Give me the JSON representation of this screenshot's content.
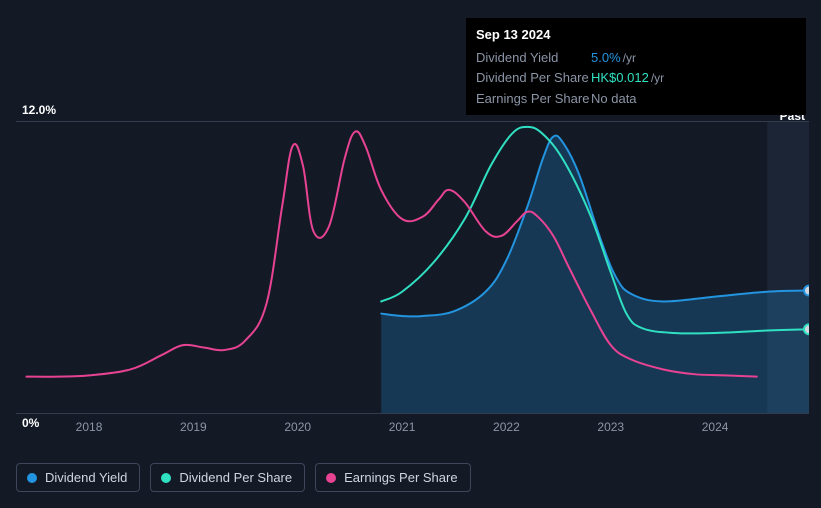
{
  "tooltip": {
    "date": "Sep 13 2024",
    "rows": [
      {
        "label": "Dividend Yield",
        "value": "5.0%",
        "unit": "/yr",
        "color": "#2394df"
      },
      {
        "label": "Dividend Per Share",
        "value": "HK$0.012",
        "unit": "/yr",
        "color": "#30e0c2"
      },
      {
        "label": "Earnings Per Share",
        "value": "No data",
        "unit": "",
        "color": "#8b95a6"
      }
    ]
  },
  "axes": {
    "y_top": "12.0%",
    "y_bottom": "0%",
    "past_label": "Past",
    "x_ticks": [
      "2018",
      "2019",
      "2020",
      "2021",
      "2022",
      "2023",
      "2024"
    ],
    "ylim": [
      0,
      12
    ],
    "grid_color": "#333c4d",
    "background_color": "#131a26"
  },
  "chart": {
    "x_year_range": [
      2017.3,
      2024.9
    ],
    "future_start_x": 2024.5,
    "series": [
      {
        "name": "Dividend Yield",
        "color": "#2394df",
        "fill": true,
        "fill_opacity": 0.25,
        "line_width": 2,
        "end_marker": true,
        "end_marker_fill": "#d0d6e0",
        "points": [
          [
            2020.8,
            4.1
          ],
          [
            2021.0,
            4.0
          ],
          [
            2021.2,
            4.0
          ],
          [
            2021.5,
            4.2
          ],
          [
            2021.8,
            5.0
          ],
          [
            2022.0,
            6.3
          ],
          [
            2022.2,
            8.5
          ],
          [
            2022.35,
            10.5
          ],
          [
            2022.45,
            11.4
          ],
          [
            2022.55,
            11.1
          ],
          [
            2022.7,
            9.8
          ],
          [
            2022.9,
            7.2
          ],
          [
            2023.05,
            5.6
          ],
          [
            2023.2,
            4.9
          ],
          [
            2023.5,
            4.6
          ],
          [
            2024.0,
            4.8
          ],
          [
            2024.5,
            5.0
          ],
          [
            2024.9,
            5.05
          ]
        ]
      },
      {
        "name": "Dividend Per Share",
        "color": "#30e0c2",
        "fill": false,
        "line_width": 2,
        "end_marker": true,
        "end_marker_fill": "#d0d6e0",
        "points": [
          [
            2020.8,
            4.6
          ],
          [
            2021.0,
            5.0
          ],
          [
            2021.3,
            6.2
          ],
          [
            2021.6,
            8.0
          ],
          [
            2021.85,
            10.2
          ],
          [
            2022.05,
            11.5
          ],
          [
            2022.2,
            11.8
          ],
          [
            2022.35,
            11.5
          ],
          [
            2022.55,
            10.4
          ],
          [
            2022.8,
            8.2
          ],
          [
            2023.0,
            5.8
          ],
          [
            2023.15,
            4.1
          ],
          [
            2023.3,
            3.5
          ],
          [
            2023.6,
            3.3
          ],
          [
            2024.0,
            3.3
          ],
          [
            2024.5,
            3.4
          ],
          [
            2024.9,
            3.45
          ]
        ]
      },
      {
        "name": "Earnings Per Share",
        "color": "#e84393",
        "fill": false,
        "line_width": 2,
        "end_marker": false,
        "points": [
          [
            2017.4,
            1.5
          ],
          [
            2017.7,
            1.5
          ],
          [
            2018.0,
            1.55
          ],
          [
            2018.4,
            1.8
          ],
          [
            2018.7,
            2.4
          ],
          [
            2018.9,
            2.8
          ],
          [
            2019.1,
            2.7
          ],
          [
            2019.3,
            2.6
          ],
          [
            2019.5,
            3.0
          ],
          [
            2019.7,
            4.5
          ],
          [
            2019.85,
            8.5
          ],
          [
            2019.95,
            11.0
          ],
          [
            2020.05,
            10.2
          ],
          [
            2020.15,
            7.5
          ],
          [
            2020.3,
            7.7
          ],
          [
            2020.45,
            10.5
          ],
          [
            2020.55,
            11.6
          ],
          [
            2020.65,
            11.0
          ],
          [
            2020.8,
            9.2
          ],
          [
            2021.0,
            8.0
          ],
          [
            2021.2,
            8.1
          ],
          [
            2021.35,
            8.8
          ],
          [
            2021.45,
            9.2
          ],
          [
            2021.6,
            8.7
          ],
          [
            2021.8,
            7.5
          ],
          [
            2021.95,
            7.3
          ],
          [
            2022.1,
            7.9
          ],
          [
            2022.2,
            8.3
          ],
          [
            2022.3,
            8.1
          ],
          [
            2022.45,
            7.3
          ],
          [
            2022.6,
            6.0
          ],
          [
            2022.8,
            4.3
          ],
          [
            2023.0,
            2.8
          ],
          [
            2023.2,
            2.2
          ],
          [
            2023.5,
            1.8
          ],
          [
            2023.8,
            1.6
          ],
          [
            2024.1,
            1.55
          ],
          [
            2024.4,
            1.5
          ]
        ]
      }
    ]
  },
  "legend": [
    {
      "label": "Dividend Yield",
      "color": "#2394df"
    },
    {
      "label": "Dividend Per Share",
      "color": "#30e0c2"
    },
    {
      "label": "Earnings Per Share",
      "color": "#e84393"
    }
  ]
}
